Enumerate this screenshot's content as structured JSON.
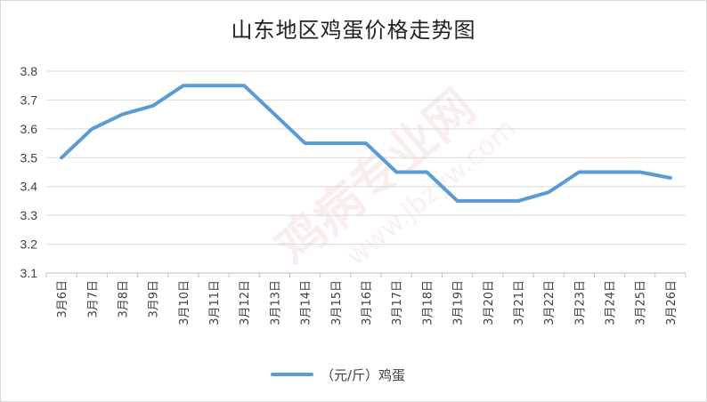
{
  "chart_data": {
    "type": "line",
    "title": "山东地区鸡蛋价格走势图",
    "categories": [
      "3月6日",
      "3月7日",
      "3月8日",
      "3月9日",
      "3月10日",
      "3月11日",
      "3月12日",
      "3月13日",
      "3月14日",
      "3月15日",
      "3月16日",
      "3月17日",
      "3月18日",
      "3月19日",
      "3月20日",
      "3月21日",
      "3月22日",
      "3月23日",
      "3月24日",
      "3月25日",
      "3月26日"
    ],
    "series": [
      {
        "name": "（元/斤）鸡蛋",
        "values": [
          3.5,
          3.6,
          3.65,
          3.68,
          3.75,
          3.75,
          3.75,
          3.65,
          3.55,
          3.55,
          3.55,
          3.45,
          3.45,
          3.35,
          3.35,
          3.35,
          3.38,
          3.45,
          3.45,
          3.45,
          3.43
        ],
        "color": "#5b9bd5"
      }
    ],
    "yticks": [
      "3.1",
      "3.2",
      "3.3",
      "3.4",
      "3.5",
      "3.6",
      "3.7",
      "3.8"
    ],
    "ylim": [
      3.1,
      3.8
    ],
    "grid": true,
    "legend_position": "bottom"
  },
  "watermark": "鸡病专业网 www.jbzyw.com"
}
